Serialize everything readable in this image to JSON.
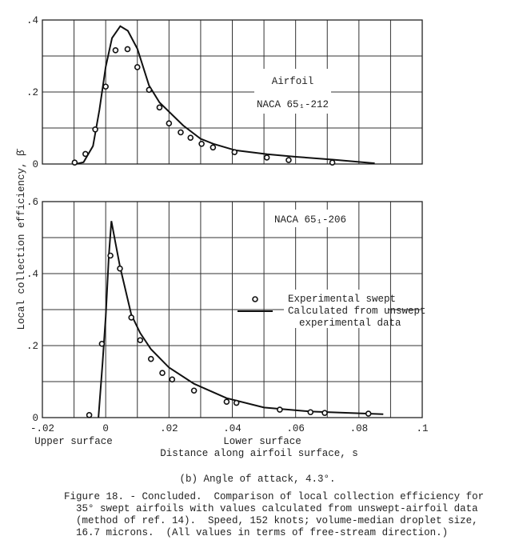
{
  "chart_data": [
    {
      "type": "scatter",
      "annotation_lines": [
        "Airfoil",
        "NACA 65₁-212"
      ],
      "xlim": [
        -0.02,
        0.1
      ],
      "ylim": [
        0,
        0.4
      ],
      "ytick_labels": [
        ".4",
        ".2",
        "0"
      ],
      "yticks": [
        0.4,
        0.2,
        0
      ],
      "grid": true,
      "series": [
        {
          "name": "Experimental swept",
          "type": "scatter",
          "x": [
            -0.0098,
            -0.0064,
            -0.0033,
            0.0,
            0.0031,
            0.0069,
            0.01,
            0.0137,
            0.017,
            0.02,
            0.0237,
            0.0268,
            0.0303,
            0.0339,
            0.0407,
            0.0509,
            0.0578,
            0.0716
          ],
          "y": [
            0.004,
            0.028,
            0.096,
            0.215,
            0.316,
            0.319,
            0.269,
            0.206,
            0.157,
            0.113,
            0.088,
            0.073,
            0.056,
            0.046,
            0.033,
            0.018,
            0.011,
            0.004
          ]
        },
        {
          "name": "Calculated from unswept experimental data",
          "type": "line",
          "x": [
            -0.0095,
            -0.007,
            -0.004,
            -0.002,
            0.0,
            0.002,
            0.0046,
            0.007,
            0.01,
            0.0137,
            0.017,
            0.0245,
            0.03,
            0.034,
            0.041,
            0.051,
            0.06,
            0.072,
            0.085
          ],
          "y": [
            0.0,
            0.005,
            0.05,
            0.15,
            0.27,
            0.35,
            0.383,
            0.37,
            0.32,
            0.218,
            0.171,
            0.107,
            0.07,
            0.056,
            0.038,
            0.027,
            0.02,
            0.012,
            0.002
          ]
        }
      ]
    },
    {
      "type": "scatter",
      "annotation_lines": [
        "NACA 65₁-206"
      ],
      "xlim": [
        -0.02,
        0.1
      ],
      "ylim": [
        0,
        0.6
      ],
      "ytick_labels": [
        ".6",
        ".4",
        ".2",
        "0"
      ],
      "yticks": [
        0.6,
        0.4,
        0.2,
        0
      ],
      "xtick_labels": [
        "-.02",
        "0",
        ".02",
        ".04",
        ".06",
        ".08",
        ".1"
      ],
      "xticks": [
        -0.02,
        0,
        0.02,
        0.04,
        0.06,
        0.08,
        0.1
      ],
      "grid": true,
      "series": [
        {
          "name": "Experimental swept",
          "type": "scatter",
          "x": [
            -0.0052,
            -0.0012,
            0.0015,
            0.0045,
            0.0081,
            0.0109,
            0.0143,
            0.0179,
            0.021,
            0.0279,
            0.0382,
            0.0413,
            0.055,
            0.0647,
            0.0692,
            0.083
          ],
          "y": [
            0.007,
            0.205,
            0.45,
            0.414,
            0.278,
            0.215,
            0.163,
            0.124,
            0.106,
            0.075,
            0.044,
            0.041,
            0.022,
            0.015,
            0.013,
            0.011
          ]
        },
        {
          "name": "Calculated from unswept experimental data",
          "type": "line",
          "x": [
            -0.0023,
            -0.001,
            0.0,
            0.001,
            0.0018,
            0.003,
            0.0045,
            0.0081,
            0.0109,
            0.0143,
            0.02,
            0.0279,
            0.0382,
            0.05,
            0.0647,
            0.0877
          ],
          "y": [
            0.0,
            0.15,
            0.28,
            0.45,
            0.546,
            0.49,
            0.42,
            0.286,
            0.235,
            0.19,
            0.139,
            0.094,
            0.054,
            0.028,
            0.017,
            0.0096
          ]
        }
      ]
    }
  ],
  "ylabel": "Local collection efficiency, β̄",
  "xlabel": "Distance along airfoil surface, s",
  "x_side_labels": {
    "left": "Upper surface",
    "right": "Lower surface"
  },
  "legend": {
    "marker_label": "Experimental swept",
    "line_label_1": "Calculated from unswept",
    "line_label_2": "experimental data"
  },
  "subcaption": "(b) Angle of attack, 4.3°.",
  "caption_lines": [
    "Figure 18. - Concluded.  Comparison of local collection efficiency for",
    "  35° swept airfoils with values calculated from unswept-airfoil data",
    "  (method of ref. 14).  Speed, 152 knots; volume-median droplet size,",
    "  16.7 microns.  (All values in terms of free-stream direction.)"
  ]
}
